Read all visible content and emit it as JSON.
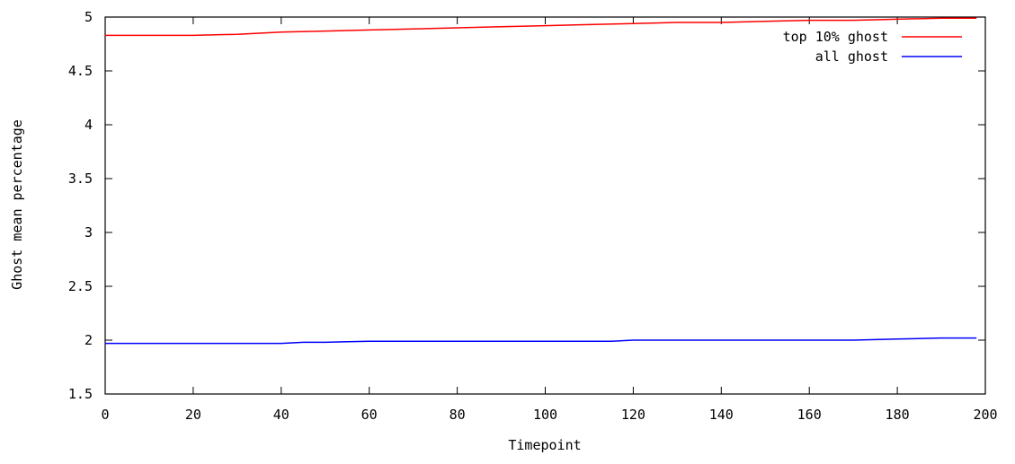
{
  "chart_data": {
    "type": "line",
    "title": "",
    "xlabel": "Timepoint",
    "ylabel": "Ghost mean percentage",
    "xlim": [
      0,
      200
    ],
    "ylim": [
      1.5,
      5
    ],
    "x_ticks": [
      "0",
      "20",
      "40",
      "60",
      "80",
      "100",
      "120",
      "140",
      "160",
      "180",
      "200"
    ],
    "y_ticks": [
      "1.5",
      "2",
      "2.5",
      "3",
      "3.5",
      "4",
      "4.5",
      "5"
    ],
    "grid": false,
    "legend_position": "top-right",
    "series": [
      {
        "name": "top 10% ghost",
        "color": "#ff0000",
        "x": [
          0,
          10,
          20,
          30,
          40,
          50,
          60,
          70,
          80,
          90,
          100,
          110,
          120,
          130,
          140,
          150,
          160,
          170,
          180,
          190,
          198
        ],
        "y": [
          4.83,
          4.83,
          4.83,
          4.84,
          4.86,
          4.87,
          4.88,
          4.89,
          4.9,
          4.91,
          4.92,
          4.93,
          4.94,
          4.95,
          4.95,
          4.96,
          4.97,
          4.97,
          4.98,
          4.99,
          4.99
        ]
      },
      {
        "name": "all ghost",
        "color": "#0000ff",
        "x": [
          0,
          10,
          20,
          30,
          40,
          45,
          50,
          60,
          70,
          80,
          90,
          100,
          110,
          115,
          120,
          130,
          140,
          150,
          160,
          170,
          180,
          190,
          198
        ],
        "y": [
          1.97,
          1.97,
          1.97,
          1.97,
          1.97,
          1.98,
          1.98,
          1.99,
          1.99,
          1.99,
          1.99,
          1.99,
          1.99,
          1.99,
          2.0,
          2.0,
          2.0,
          2.0,
          2.0,
          2.0,
          2.01,
          2.02,
          2.02
        ]
      }
    ]
  }
}
